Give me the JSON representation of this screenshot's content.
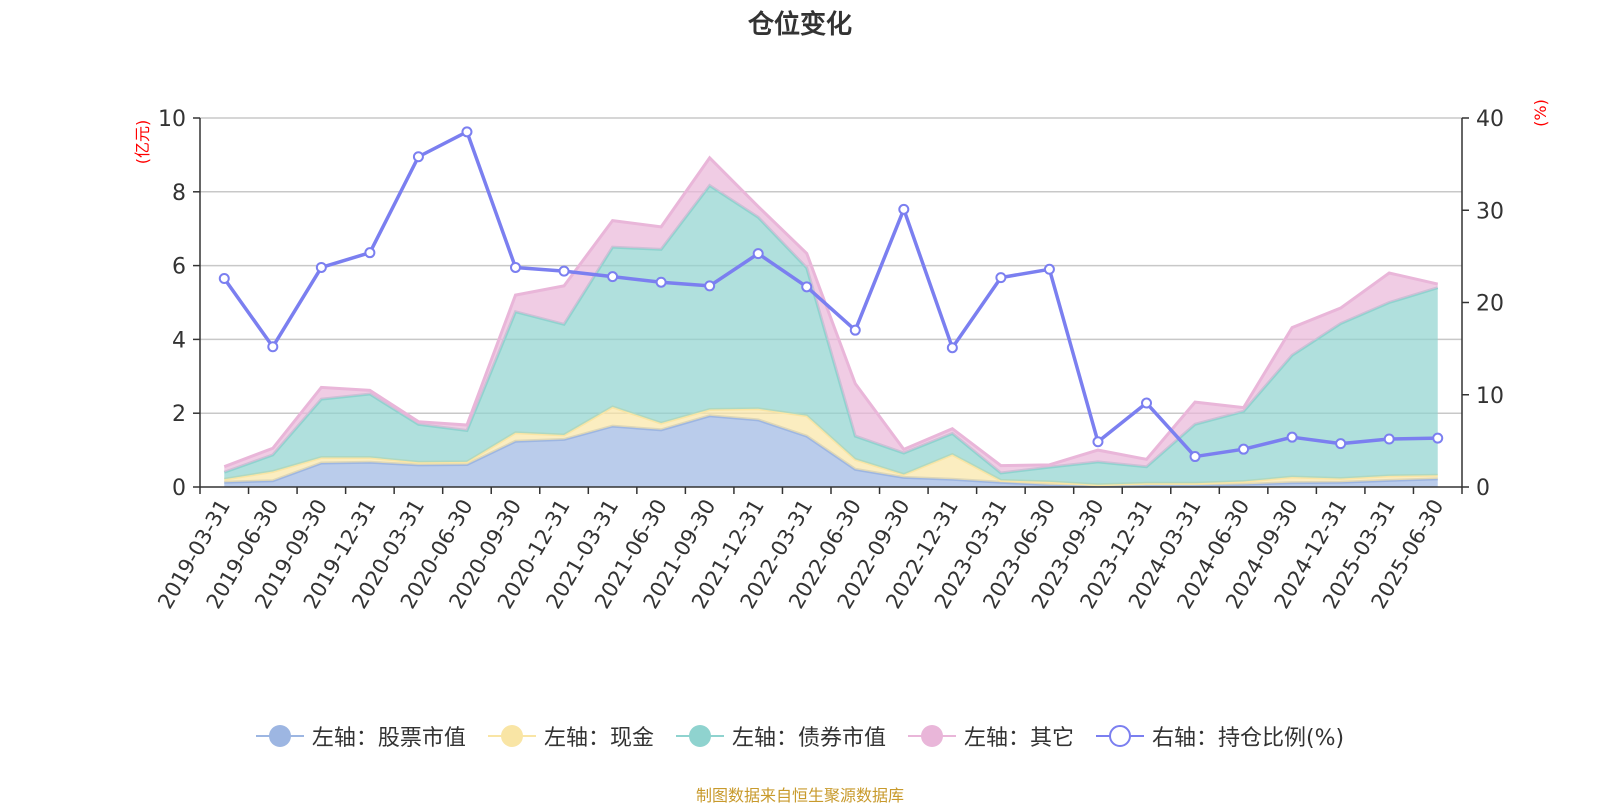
{
  "title": "仓位变化",
  "source": "制图数据来自恒生聚源数据库",
  "legend": [
    {
      "label": "左轴：股票市值",
      "color": "#9db6e2",
      "hollow": false
    },
    {
      "label": "左轴：现金",
      "color": "#f9e5a5",
      "hollow": false
    },
    {
      "label": "左轴：债券市值",
      "color": "#8fd3cf",
      "hollow": false
    },
    {
      "label": "左轴：其它",
      "color": "#e9b6d9",
      "hollow": false
    },
    {
      "label": "右轴：持仓比例(%)",
      "color": "#7b7ff0",
      "hollow": true
    }
  ],
  "chart_data": {
    "type": "area",
    "title": "仓位变化",
    "y_left_label": "(亿元)",
    "y_right_label": "(%)",
    "y_left_lim": [
      0,
      10
    ],
    "y_left_ticks": [
      0,
      2,
      4,
      6,
      8,
      10
    ],
    "y_right_lim": [
      0,
      40
    ],
    "y_right_ticks": [
      0,
      10,
      20,
      30,
      40
    ],
    "grid": true,
    "legend_position": "bottom",
    "x": [
      "2019-03-31",
      "2019-06-30",
      "2019-09-30",
      "2019-12-31",
      "2020-03-31",
      "2020-06-30",
      "2020-09-30",
      "2020-12-31",
      "2021-03-31",
      "2021-06-30",
      "2021-09-30",
      "2021-12-31",
      "2022-03-31",
      "2022-06-30",
      "2022-09-30",
      "2022-12-31",
      "2023-03-31",
      "2023-06-30",
      "2023-09-30",
      "2023-12-31",
      "2024-03-31",
      "2024-06-30",
      "2024-09-30",
      "2024-12-31",
      "2025-03-31",
      "2025-06-30"
    ],
    "stacked_series": [
      {
        "name": "左轴：股票市值",
        "axis": "left",
        "color": "#9db6e2",
        "values": [
          0.13,
          0.17,
          0.65,
          0.67,
          0.6,
          0.61,
          1.24,
          1.29,
          1.65,
          1.55,
          1.93,
          1.82,
          1.38,
          0.48,
          0.26,
          0.21,
          0.13,
          0.06,
          0.03,
          0.05,
          0.05,
          0.07,
          0.12,
          0.13,
          0.18,
          0.22
        ]
      },
      {
        "name": "左轴：现金",
        "axis": "left",
        "color": "#f9e5a5",
        "values": [
          0.08,
          0.25,
          0.15,
          0.13,
          0.07,
          0.07,
          0.23,
          0.12,
          0.52,
          0.18,
          0.17,
          0.3,
          0.55,
          0.27,
          0.08,
          0.67,
          0.05,
          0.08,
          0.03,
          0.05,
          0.05,
          0.08,
          0.15,
          0.1,
          0.12,
          0.1
        ]
      },
      {
        "name": "左轴：债券市值",
        "axis": "left",
        "color": "#8fd3cf",
        "values": [
          0.19,
          0.45,
          1.58,
          1.72,
          1.03,
          0.85,
          3.28,
          3.0,
          4.33,
          4.71,
          6.07,
          5.19,
          4.01,
          0.63,
          0.58,
          0.57,
          0.2,
          0.4,
          0.62,
          0.45,
          1.6,
          1.9,
          3.3,
          4.2,
          4.7,
          5.08
        ]
      },
      {
        "name": "左轴：其它",
        "axis": "left",
        "color": "#e9b6d9",
        "values": [
          0.15,
          0.18,
          0.32,
          0.1,
          0.07,
          0.15,
          0.45,
          1.04,
          0.72,
          0.61,
          0.75,
          0.29,
          0.39,
          1.42,
          0.1,
          0.13,
          0.2,
          0.06,
          0.32,
          0.2,
          0.6,
          0.1,
          0.75,
          0.42,
          0.8,
          0.1
        ]
      }
    ],
    "line_series": {
      "name": "右轴：持仓比例(%)",
      "axis": "right",
      "color": "#7b7ff0",
      "values": [
        22.6,
        15.2,
        23.8,
        25.4,
        35.8,
        38.5,
        23.8,
        23.4,
        22.8,
        22.2,
        21.8,
        25.3,
        21.7,
        17.0,
        30.1,
        15.1,
        22.7,
        23.6,
        4.9,
        9.1,
        3.3,
        4.1,
        5.4,
        4.7,
        5.2,
        5.3
      ]
    }
  }
}
